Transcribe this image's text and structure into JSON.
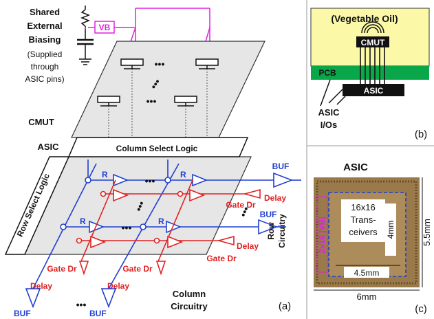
{
  "colors": {
    "blue": "#1f3fd0",
    "red": "#e02020",
    "magenta": "#e020e0",
    "oil": "#fbf8a8",
    "pcb": "#0aa64a",
    "plane": "#e6e6e6",
    "die": "#9a7a4a"
  },
  "panel_a": {
    "bias_title_1": "Shared",
    "bias_title_2": "External",
    "bias_title_3": "Biasing",
    "bias_note_1": "(Supplied",
    "bias_note_2": "through",
    "bias_note_3": "ASIC pins)",
    "vb": "VB",
    "cmut": "CMUT",
    "asic": "ASIC",
    "column_select": "Column Select Logic",
    "row_select": "Row Select Logic",
    "r": "R",
    "buf": "BUF",
    "gate_dr": "Gate Dr",
    "delay": "Delay",
    "row_circuitry_1": "Row",
    "row_circuitry_2": "Circuitry",
    "column_circuitry_1": "Column",
    "column_circuitry_2": "Circuitry",
    "ellipsis": "•••",
    "tag": "(a)"
  },
  "panel_b": {
    "oil": "(Vegetable Oil)",
    "cmut": "CMUT",
    "pcb": "PCB",
    "asic": "ASIC",
    "ios_1": "ASIC",
    "ios_2": "I/Os",
    "tag": "(b)"
  },
  "panel_c": {
    "title": "ASIC",
    "array_1": "16x16",
    "array_2": "Trans-",
    "array_3": "ceivers",
    "vb_label": "2x16 |VB|",
    "dim_inner_h": "4.5mm",
    "dim_inner_v": "4mm",
    "dim_outer_h": "6mm",
    "dim_outer_v": "5.5mm",
    "tag": "(c)"
  }
}
